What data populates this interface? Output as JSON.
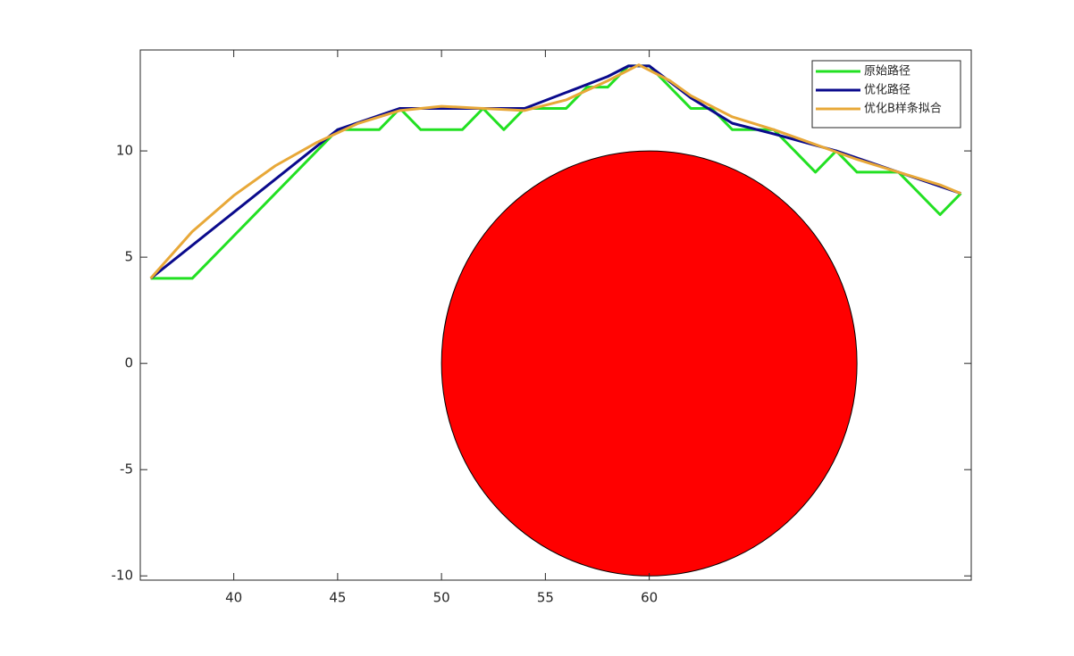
{
  "chart_data": {
    "type": "line",
    "xlim": [
      35.5,
      75.5
    ],
    "ylim": [
      -10.2,
      14.75
    ],
    "xticks": [
      40,
      45,
      50,
      55,
      60
    ],
    "yticks": [
      -10,
      -5,
      0,
      5,
      10
    ],
    "legend": "upper-right",
    "obstacle": {
      "center": [
        60,
        0
      ],
      "radius": 10,
      "color": "#ff0000"
    },
    "series": [
      {
        "name": "原始路径",
        "color": "#22e022",
        "x": [
          36,
          38,
          45,
          47,
          48,
          49,
          51,
          52,
          53,
          54,
          56,
          57,
          58,
          59,
          60,
          62,
          63,
          64,
          66,
          68,
          69,
          70,
          72,
          74,
          75
        ],
        "values": [
          4,
          4,
          11,
          11,
          12,
          11,
          11,
          12,
          11,
          12,
          12,
          13,
          13,
          14,
          14,
          12,
          12,
          11,
          11,
          9,
          10,
          9,
          9,
          7,
          8
        ]
      },
      {
        "name": "优化路径",
        "color": "#0a0a8c",
        "x": [
          36,
          45,
          48,
          54,
          58,
          59,
          60,
          62,
          64,
          66,
          69,
          75
        ],
        "values": [
          4,
          11,
          12,
          12,
          13.5,
          14,
          14,
          12.5,
          11.3,
          10.8,
          10,
          8
        ]
      },
      {
        "name": "优化B样条拟合",
        "color": "#e8a838",
        "x": [
          36,
          38,
          40,
          42,
          44,
          46,
          48,
          50,
          52,
          54,
          56,
          58,
          59.5,
          61,
          62,
          64,
          66,
          68,
          70,
          72,
          74,
          75
        ],
        "values": [
          4,
          6.2,
          7.9,
          9.3,
          10.4,
          11.3,
          11.9,
          12.1,
          12.0,
          11.9,
          12.4,
          13.3,
          14.05,
          13.3,
          12.6,
          11.6,
          11.0,
          10.3,
          9.6,
          9.0,
          8.4,
          8
        ]
      }
    ]
  }
}
